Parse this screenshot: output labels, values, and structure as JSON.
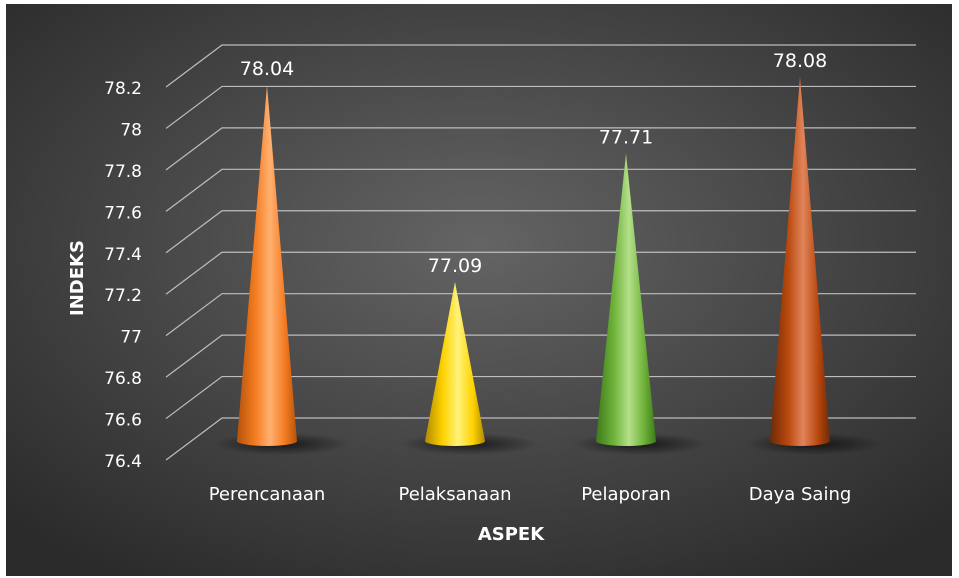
{
  "chart_data": {
    "type": "bar",
    "bar_shape": "cone",
    "categories": [
      "Perencanaan",
      "Pelaksanaan",
      "Pelaporan",
      "Daya Saing"
    ],
    "values": [
      78.04,
      77.09,
      77.71,
      78.08
    ],
    "data_labels": [
      "78.04",
      "77.09",
      "77.71",
      "78.08"
    ],
    "xlabel": "ASPEK",
    "ylabel": "INDEKS",
    "ylim": [
      76.4,
      78.2
    ],
    "yticks": [
      "76.4",
      "76.6",
      "76.8",
      "77",
      "77.2",
      "77.4",
      "77.6",
      "77.8",
      "78",
      "78.2"
    ],
    "grid": true,
    "legend": "none",
    "colors": {
      "background_light": "#646464",
      "background_dark": "#2a2a2a",
      "text": "#ffffff",
      "grid": "#bdbdbd",
      "bars": [
        {
          "light": "#ffb070",
          "mid": "#f47b20",
          "dark": "#b5520b"
        },
        {
          "light": "#fff27a",
          "mid": "#ffd200",
          "dark": "#b08a00"
        },
        {
          "light": "#b4e08a",
          "mid": "#6fb33a",
          "dark": "#3d7a1b"
        },
        {
          "light": "#e0845a",
          "mid": "#b9480e",
          "dark": "#6e2a06"
        }
      ]
    }
  }
}
